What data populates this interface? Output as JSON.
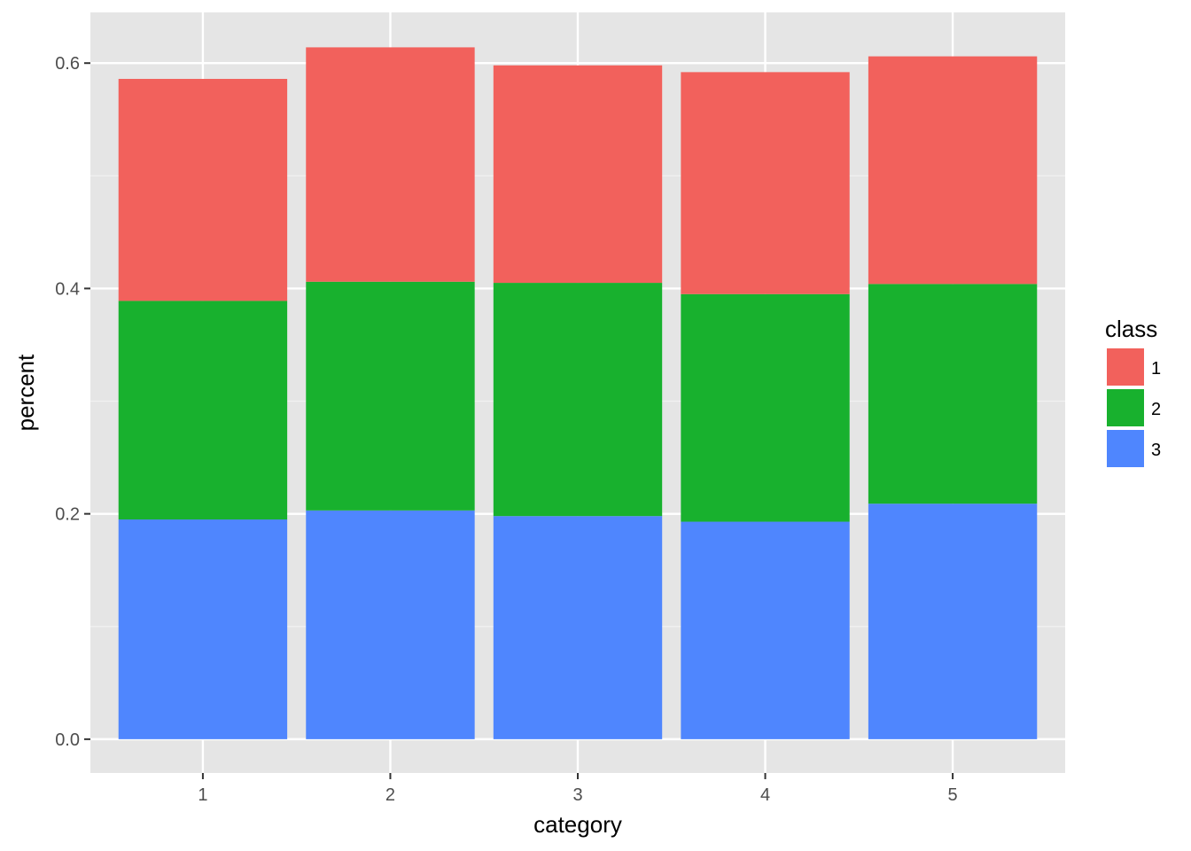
{
  "chart_data": {
    "type": "bar",
    "stacked": true,
    "categories": [
      "1",
      "2",
      "3",
      "4",
      "5"
    ],
    "series": [
      {
        "name": "3",
        "color": "#4f86fe",
        "values": [
          0.195,
          0.203,
          0.198,
          0.193,
          0.209
        ]
      },
      {
        "name": "2",
        "color": "#18b12e",
        "values": [
          0.194,
          0.203,
          0.207,
          0.202,
          0.195
        ]
      },
      {
        "name": "1",
        "color": "#f2615c",
        "values": [
          0.197,
          0.208,
          0.193,
          0.197,
          0.202
        ]
      }
    ],
    "xlabel": "category",
    "ylabel": "percent",
    "ylim": [
      -0.03,
      0.645
    ],
    "y_ticks": [
      "0.0",
      "0.2",
      "0.4",
      "0.6"
    ],
    "y_tick_values": [
      0,
      0.2,
      0.4,
      0.6
    ],
    "y_minor_values": [
      0.1,
      0.3,
      0.5
    ],
    "legend": {
      "title": "class",
      "position": "right",
      "entries": [
        {
          "label": "1",
          "color": "#f2615c"
        },
        {
          "label": "2",
          "color": "#18b12e"
        },
        {
          "label": "3",
          "color": "#4f86fe"
        }
      ]
    },
    "panel_background": "#e5e5e5",
    "grid": true
  }
}
